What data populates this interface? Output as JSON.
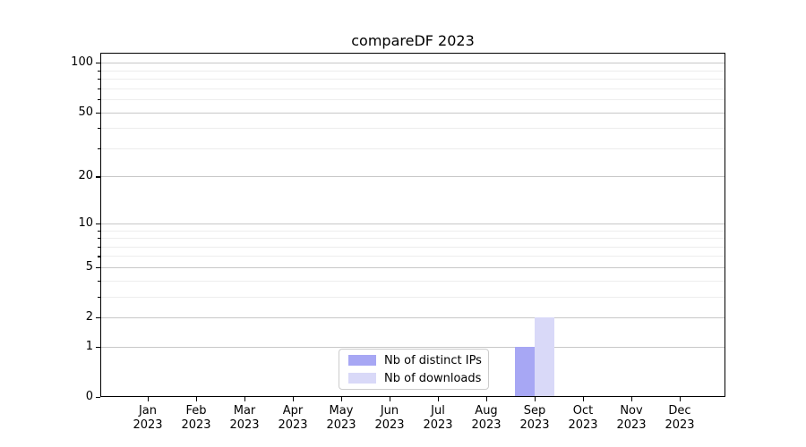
{
  "title": "compareDF 2023",
  "chart_data": {
    "type": "bar",
    "title": "compareDF 2023",
    "categories": [
      "Jan 2023",
      "Feb 2023",
      "Mar 2023",
      "Apr 2023",
      "May 2023",
      "Jun 2023",
      "Jul 2023",
      "Aug 2023",
      "Sep 2023",
      "Oct 2023",
      "Nov 2023",
      "Dec 2023"
    ],
    "series": [
      {
        "name": "Nb of distinct IPs",
        "color": "#a7a7f4",
        "values": [
          0,
          0,
          0,
          0,
          0,
          0,
          0,
          0,
          1,
          0,
          0,
          0
        ]
      },
      {
        "name": "Nb of downloads",
        "color": "#d9d9f8",
        "values": [
          0,
          0,
          0,
          0,
          0,
          0,
          0,
          0,
          2,
          0,
          0,
          0
        ]
      }
    ],
    "yscale": "log1p",
    "ylim": [
      0,
      115
    ],
    "y_major_ticks": [
      0,
      1,
      2,
      5,
      10,
      20,
      50,
      100
    ],
    "y_minor_ticks": [
      3,
      4,
      6,
      7,
      8,
      9,
      30,
      40,
      60,
      70,
      80,
      90
    ],
    "grid": true,
    "legend_position": "lower-center-inside",
    "colors": {
      "grid_major": "#c8c8c8",
      "grid_minor": "#ededed",
      "spine": "#000000",
      "text": "#000000"
    }
  },
  "legend": {
    "items": [
      {
        "label": "Nb of distinct IPs"
      },
      {
        "label": "Nb of downloads"
      }
    ]
  }
}
